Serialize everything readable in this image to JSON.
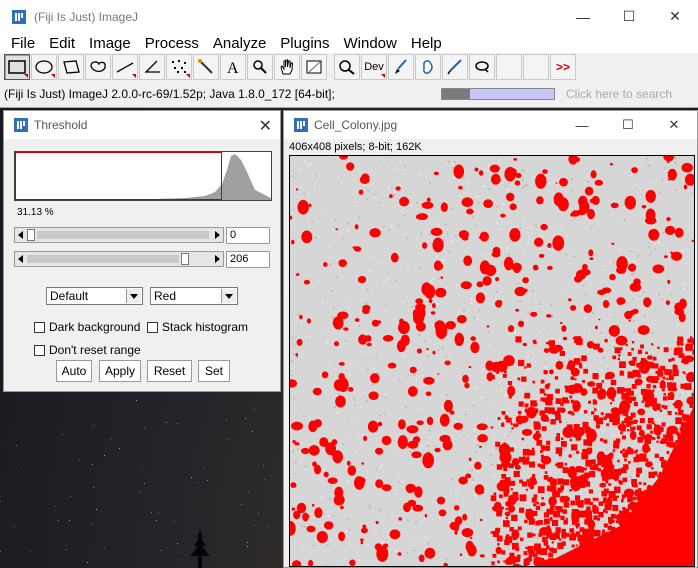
{
  "main_window": {
    "title": "(Fiji Is Just) ImageJ",
    "controls": [
      "—",
      "☐",
      "✕"
    ]
  },
  "menu": [
    "File",
    "Edit",
    "Image",
    "Process",
    "Analyze",
    "Plugins",
    "Window",
    "Help"
  ],
  "toolbar": {
    "tools": [
      "rectangle-tool",
      "oval-tool",
      "polygon-tool",
      "freehand-tool",
      "line-tool",
      "angle-tool",
      "point-tool",
      "wand-tool",
      "text-tool",
      "magnifier-tool",
      "hand-tool",
      "color-picker-tool",
      "zoom-tool",
      "dev-tool",
      "brush-tool",
      "flood-fill-tool",
      "pencil-tool",
      "lens-tool"
    ],
    "dev_label": "Dev",
    "more_label": ">>"
  },
  "status": {
    "text": "(Fiji Is Just) ImageJ 2.0.0-rc-69/1.52p; Java 1.8.0_172 [64-bit];",
    "progress_fraction": 0.25,
    "search_placeholder": "Click here to search"
  },
  "threshold": {
    "title": "Threshold",
    "percent": "31.13 %",
    "min_value": "0",
    "max_value": "206",
    "method": "Default",
    "display": "Red",
    "dark_background": "Dark background",
    "stack_histogram": "Stack histogram",
    "dont_reset": "Don't reset range",
    "buttons": {
      "auto": "Auto",
      "apply": "Apply",
      "reset": "Reset",
      "set": "Set"
    }
  },
  "image_window": {
    "title": "Cell_Colony.jpg",
    "info": "406x408 pixels; 8-bit; 162K",
    "controls": [
      "—",
      "☐",
      "✕"
    ]
  },
  "colors": {
    "threshold_red": "#ff0000",
    "progress_bg": "#c8c8f8",
    "progress_fill": "#7a7a7a"
  }
}
